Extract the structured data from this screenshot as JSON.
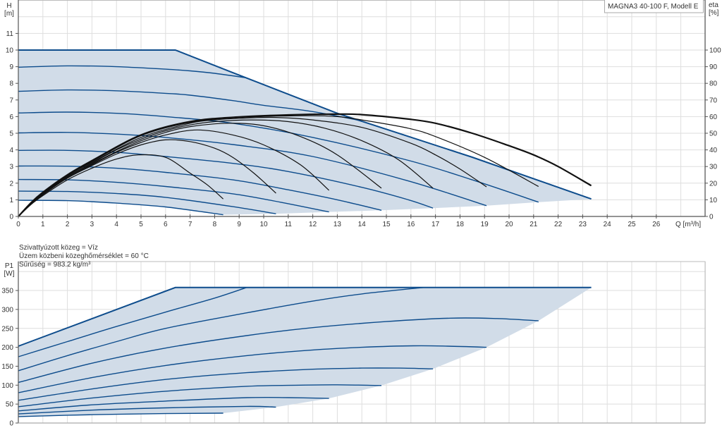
{
  "colors": {
    "range_fill": "#d1dce8",
    "head_line": "#0d4c8c",
    "efficiency_line": "#111111",
    "grid": "#dedede",
    "axis": "#555555"
  },
  "medium_info": [
    "Szivattyúzott közeg = Víz",
    "Üzem közbeni közeghőmérséklet = 60 °C",
    "Sűrűség = 983.2 kg/m³"
  ],
  "chart_data": [
    {
      "type": "line",
      "title": "MAGNA3 40-100 F, Modell E",
      "xlabel": "Q [m³/h]",
      "ylabel": [
        "H",
        "[m]"
      ],
      "y2label": [
        "eta",
        "[%]"
      ],
      "xlim": [
        0,
        28
      ],
      "ylim": [
        0,
        13
      ],
      "y2lim": [
        0,
        130
      ],
      "xticks": [
        0,
        1,
        2,
        3,
        4,
        5,
        6,
        7,
        8,
        9,
        10,
        11,
        12,
        13,
        14,
        15,
        16,
        17,
        18,
        19,
        20,
        21,
        22,
        23,
        24,
        25,
        26
      ],
      "yticks": [
        0,
        1,
        2,
        3,
        4,
        5,
        6,
        7,
        8,
        9,
        10,
        11
      ],
      "y2ticks": [
        0,
        10,
        20,
        30,
        40,
        50,
        60,
        70,
        80,
        90,
        100
      ],
      "grid": true,
      "head_series": [
        {
          "shape": "linear",
          "points": [
            [
              0,
              10
            ],
            [
              6.4,
              10
            ],
            [
              8.74,
              8.64
            ],
            [
              13,
              6.2
            ],
            [
              18.5,
              3.56
            ],
            [
              23.35,
              1.05
            ]
          ]
        },
        {
          "points": [
            [
              0,
              8.97
            ],
            [
              2,
              9.05
            ],
            [
              4,
              9.0
            ],
            [
              6,
              8.85
            ],
            [
              7,
              8.75
            ],
            [
              8,
              8.6
            ],
            [
              9.3,
              8.33
            ]
          ]
        },
        {
          "points": [
            [
              0,
              7.52
            ],
            [
              2,
              7.6
            ],
            [
              4,
              7.55
            ],
            [
              6,
              7.4
            ],
            [
              7,
              7.29
            ],
            [
              8.74,
              6.96
            ],
            [
              10,
              6.68
            ],
            [
              12,
              6.3
            ],
            [
              13.9,
              5.77
            ]
          ]
        },
        {
          "points": [
            [
              0,
              6.22
            ],
            [
              2,
              6.27
            ],
            [
              4,
              6.2
            ],
            [
              6,
              6.0
            ],
            [
              8.74,
              5.6
            ],
            [
              12,
              4.75
            ],
            [
              15.9,
              3.37
            ],
            [
              18.5,
              2.2
            ],
            [
              21.2,
              0.86
            ]
          ]
        },
        {
          "points": [
            [
              0,
              5.02
            ],
            [
              2,
              5.05
            ],
            [
              4,
              4.95
            ],
            [
              6,
              4.75
            ],
            [
              8.74,
              4.32
            ],
            [
              12,
              3.6
            ],
            [
              15.9,
              2.13
            ],
            [
              19.08,
              0.65
            ]
          ]
        },
        {
          "points": [
            [
              0,
              3.97
            ],
            [
              2,
              3.97
            ],
            [
              4,
              3.85
            ],
            [
              6,
              3.6
            ],
            [
              8.74,
              3.19
            ],
            [
              11,
              2.7
            ],
            [
              14,
              1.75
            ],
            [
              15.9,
              1.0
            ],
            [
              16.9,
              0.5
            ]
          ]
        },
        {
          "points": [
            [
              0,
              3.03
            ],
            [
              2,
              3.02
            ],
            [
              4,
              2.9
            ],
            [
              6,
              2.65
            ],
            [
              8.74,
              2.2
            ],
            [
              11,
              1.6
            ],
            [
              13,
              1.0
            ],
            [
              14.8,
              0.37
            ]
          ]
        },
        {
          "points": [
            [
              0,
              2.22
            ],
            [
              2,
              2.2
            ],
            [
              4,
              2.05
            ],
            [
              6,
              1.8
            ],
            [
              8.74,
              1.36
            ],
            [
              10.7,
              0.85
            ],
            [
              12.66,
              0.27
            ]
          ]
        },
        {
          "points": [
            [
              0,
              1.52
            ],
            [
              2,
              1.5
            ],
            [
              4,
              1.38
            ],
            [
              6,
              1.15
            ],
            [
              8.74,
              0.59
            ],
            [
              10.5,
              0.16
            ]
          ]
        },
        {
          "points": [
            [
              0,
              0.97
            ],
            [
              2,
              0.95
            ],
            [
              4,
              0.8
            ],
            [
              6,
              0.57
            ],
            [
              8.35,
              0.1
            ]
          ]
        }
      ],
      "efficiency_series": [
        {
          "points": [
            [
              0,
              0
            ],
            [
              0.5,
              8
            ],
            [
              1,
              14.5
            ],
            [
              2,
              25
            ],
            [
              3,
              33.5
            ],
            [
              5,
              49
            ],
            [
              7,
              57
            ],
            [
              9,
              59.8
            ],
            [
              11,
              61
            ],
            [
              13,
              61.5
            ],
            [
              14,
              61.2
            ],
            [
              15.9,
              58.5
            ],
            [
              17,
              56
            ],
            [
              18.5,
              50
            ],
            [
              20,
              42.5
            ],
            [
              21,
              37
            ],
            [
              22,
              30
            ],
            [
              23.35,
              18.5
            ]
          ]
        },
        {
          "points": [
            [
              0,
              0
            ],
            [
              0.5,
              8
            ],
            [
              1,
              14
            ],
            [
              2,
              24.5
            ],
            [
              3,
              33
            ],
            [
              5,
              48.5
            ],
            [
              7,
              56.5
            ],
            [
              9,
              59.5
            ],
            [
              11.7,
              60.5
            ],
            [
              13,
              60
            ],
            [
              14,
              58
            ],
            [
              15.9,
              53
            ],
            [
              17,
              48
            ],
            [
              19,
              35.5
            ],
            [
              21.2,
              18
            ]
          ]
        },
        {
          "points": [
            [
              0,
              0
            ],
            [
              0.5,
              7.5
            ],
            [
              1,
              14
            ],
            [
              2,
              24.5
            ],
            [
              3,
              32.5
            ],
            [
              5,
              47.5
            ],
            [
              7,
              56
            ],
            [
              8,
              58
            ],
            [
              9,
              59
            ],
            [
              10.5,
              59.5
            ],
            [
              12,
              58
            ],
            [
              14,
              53.5
            ],
            [
              16,
              44
            ],
            [
              17,
              37
            ],
            [
              18,
              28.5
            ],
            [
              19.08,
              17.8
            ]
          ]
        },
        {
          "points": [
            [
              0,
              0
            ],
            [
              0.5,
              7.5
            ],
            [
              1,
              14
            ],
            [
              2,
              24
            ],
            [
              3,
              32
            ],
            [
              4,
              40
            ],
            [
              5,
              46.5
            ],
            [
              6,
              51.5
            ],
            [
              7,
              55
            ],
            [
              8,
              57
            ],
            [
              9.5,
              58
            ],
            [
              11,
              57
            ],
            [
              12.5,
              53
            ],
            [
              14,
              45.5
            ],
            [
              15.5,
              34
            ],
            [
              16.9,
              17
            ]
          ]
        },
        {
          "points": [
            [
              0,
              0
            ],
            [
              0.5,
              7.5
            ],
            [
              1,
              13.5
            ],
            [
              2,
              24
            ],
            [
              3,
              31.5
            ],
            [
              4,
              39
            ],
            [
              5,
              45.5
            ],
            [
              6,
              50.5
            ],
            [
              7,
              54
            ],
            [
              8.6,
              56
            ],
            [
              10,
              54.5
            ],
            [
              11.5,
              48
            ],
            [
              13,
              37
            ],
            [
              14.8,
              17
            ]
          ]
        },
        {
          "points": [
            [
              0,
              0
            ],
            [
              0.5,
              7.5
            ],
            [
              1,
              13.5
            ],
            [
              2,
              23.5
            ],
            [
              3,
              31
            ],
            [
              4,
              38.5
            ],
            [
              5,
              44.5
            ],
            [
              6,
              49
            ],
            [
              7.3,
              52
            ],
            [
              8.74,
              49
            ],
            [
              10,
              43
            ],
            [
              11.5,
              31
            ],
            [
              12.66,
              15.7
            ]
          ]
        },
        {
          "points": [
            [
              0,
              0
            ],
            [
              0.5,
              7
            ],
            [
              1,
              13
            ],
            [
              2,
              23
            ],
            [
              3,
              30.5
            ],
            [
              4,
              37.5
            ],
            [
              5,
              43
            ],
            [
              6,
              46
            ],
            [
              7,
              45
            ],
            [
              8,
              41
            ],
            [
              8.74,
              35.5
            ],
            [
              9.6,
              26
            ],
            [
              10.5,
              14
            ]
          ]
        },
        {
          "points": [
            [
              0,
              0
            ],
            [
              0.5,
              7
            ],
            [
              1,
              12.5
            ],
            [
              2,
              22
            ],
            [
              3,
              29
            ],
            [
              4,
              34.5
            ],
            [
              4.9,
              37
            ],
            [
              6,
              35.5
            ],
            [
              7,
              26
            ],
            [
              7.7,
              19
            ],
            [
              8.35,
              10.5
            ]
          ]
        }
      ]
    },
    {
      "type": "line",
      "ylabel": [
        "P1",
        "[W]"
      ],
      "xlim": [
        0,
        28
      ],
      "ylim": [
        0,
        400
      ],
      "yticks": [
        0,
        50,
        100,
        150,
        200,
        250,
        300,
        350
      ],
      "grid": true,
      "power_series": [
        {
          "shape": "linear",
          "points": [
            [
              0,
              203
            ],
            [
              6.4,
              358
            ],
            [
              23.35,
              358
            ]
          ]
        },
        {
          "points": [
            [
              0,
              175
            ],
            [
              2,
              215
            ],
            [
              4,
              255
            ],
            [
              6,
              293
            ],
            [
              8,
              330
            ],
            [
              9.3,
              358
            ]
          ]
        },
        {
          "points": [
            [
              0,
              138
            ],
            [
              2,
              178
            ],
            [
              4,
              215
            ],
            [
              6,
              250
            ],
            [
              9.31,
              291
            ],
            [
              12,
              322
            ],
            [
              14,
              341
            ],
            [
              16.5,
              358
            ]
          ]
        },
        {
          "points": [
            [
              0,
              107
            ],
            [
              3,
              158
            ],
            [
              6,
              198
            ],
            [
              9.31,
              231
            ],
            [
              12,
              252
            ],
            [
              15,
              268
            ],
            [
              17.6,
              277
            ],
            [
              19.5,
              276
            ],
            [
              21.2,
              270
            ]
          ]
        },
        {
          "points": [
            [
              0,
              80
            ],
            [
              3,
              120
            ],
            [
              6,
              152
            ],
            [
              9.31,
              178
            ],
            [
              12,
              193
            ],
            [
              14,
              200
            ],
            [
              16.1,
              204
            ],
            [
              17.5,
              203
            ],
            [
              19.08,
              200
            ]
          ]
        },
        {
          "points": [
            [
              0,
              60
            ],
            [
              3,
              90
            ],
            [
              6,
              115
            ],
            [
              9.31,
              133
            ],
            [
              12,
              142
            ],
            [
              14,
              145
            ],
            [
              15.5,
              145
            ],
            [
              16.9,
              143
            ]
          ]
        },
        {
          "points": [
            [
              0,
              43
            ],
            [
              3,
              66
            ],
            [
              6,
              84
            ],
            [
              9.31,
              97
            ],
            [
              11.5,
              100
            ],
            [
              13,
              101
            ],
            [
              14.8,
              99
            ]
          ]
        },
        {
          "points": [
            [
              0,
              32
            ],
            [
              3,
              48
            ],
            [
              6,
              58
            ],
            [
              9.31,
              67
            ],
            [
              11,
              67
            ],
            [
              12.66,
              65
            ]
          ]
        },
        {
          "points": [
            [
              0,
              24
            ],
            [
              3,
              34
            ],
            [
              6,
              40
            ],
            [
              9.31,
              44
            ],
            [
              10.5,
              42
            ]
          ]
        },
        {
          "points": [
            [
              0,
              17
            ],
            [
              3,
              22
            ],
            [
              6,
              25
            ],
            [
              8.35,
              26
            ]
          ]
        }
      ]
    }
  ]
}
